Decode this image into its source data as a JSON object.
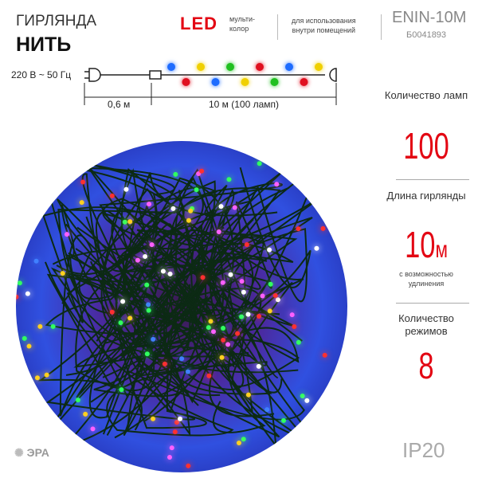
{
  "header": {
    "title_line1": "ГИРЛЯНДА",
    "title_line2": "НИТЬ",
    "led": "LED",
    "led_note": "мульти-\nколор",
    "usage": "для использования\nвнутри помещений",
    "model": "ENIN-10M",
    "code": "Б0041893"
  },
  "diagram": {
    "voltage": "220 В ~ 50 Гц",
    "cord_length": "0,6 м",
    "string_length": "10 м (100 ламп)",
    "bulb_colors": [
      "#1e6cff",
      "#e01020",
      "#f0d000",
      "#1e6cff",
      "#20c020",
      "#f0d000",
      "#e01020",
      "#20c020",
      "#1e6cff",
      "#e01020",
      "#f0d000"
    ]
  },
  "specs": [
    {
      "label": "Количество ламп",
      "value": "100",
      "unit": "",
      "note": ""
    },
    {
      "label": "Длина гирлянды",
      "value": "10",
      "unit": "м",
      "note": "с возможностью удлинения"
    },
    {
      "label": "Количество режимов",
      "value": "8",
      "unit": "",
      "note": ""
    }
  ],
  "ip_rating": "IP20",
  "brand": "ЭРА"
}
